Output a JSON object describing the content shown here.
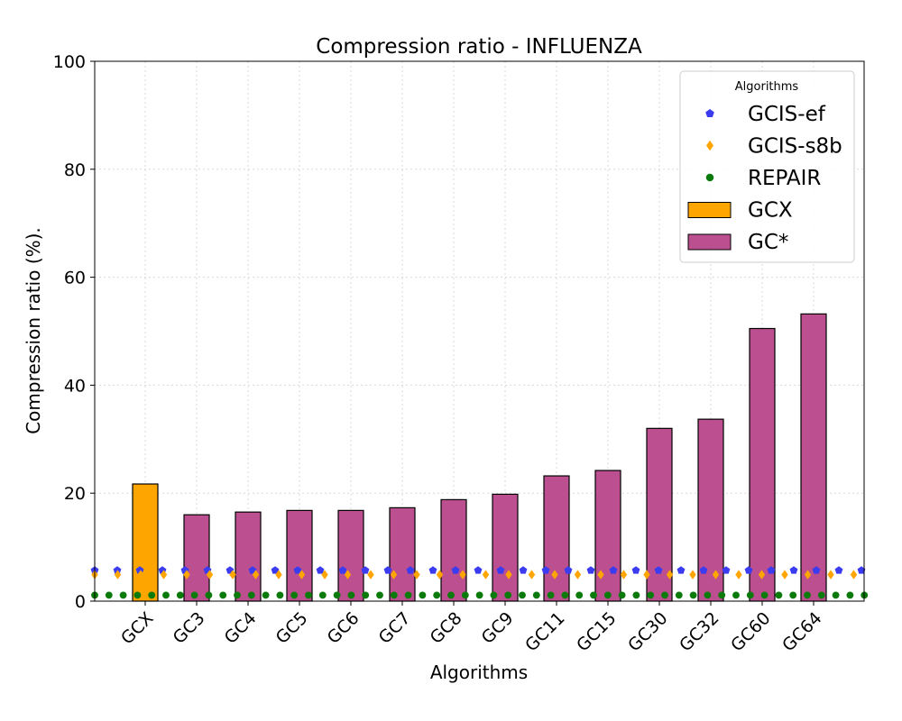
{
  "chart_data": {
    "type": "bar",
    "title": "Compression ratio -  INFLUENZA",
    "xlabel": "Algorithms",
    "ylabel": "Compression ratio (%).",
    "ylim": [
      0,
      100
    ],
    "yticks": [
      0,
      20,
      40,
      60,
      80,
      100
    ],
    "grid": true,
    "legend_position": "top-right",
    "legend_title": "Algorithms",
    "categories": [
      "GCX",
      "GC3",
      "GC4",
      "GC5",
      "GC6",
      "GC7",
      "GC8",
      "GC9",
      "GC11",
      "GC15",
      "GC30",
      "GC32",
      "GC60",
      "GC64"
    ],
    "bars": [
      {
        "name": "GCX",
        "color": "#ffa500",
        "values": [
          21.7,
          null,
          null,
          null,
          null,
          null,
          null,
          null,
          null,
          null,
          null,
          null,
          null,
          null
        ]
      },
      {
        "name": "GC*",
        "color": "#bc4f8f",
        "values": [
          null,
          16.0,
          16.5,
          16.8,
          16.8,
          17.3,
          18.8,
          19.8,
          23.2,
          24.2,
          32.0,
          33.7,
          50.5,
          53.2
        ]
      }
    ],
    "lines": [
      {
        "name": "GCIS-ef",
        "color": "#3b3bf0",
        "marker": "pentagon",
        "value": 5.7
      },
      {
        "name": "GCIS-s8b",
        "color": "#ffa500",
        "marker": "diamond",
        "value": 4.9
      },
      {
        "name": "REPAIR",
        "color": "#0a7a0a",
        "marker": "circle",
        "value": 1.1
      }
    ],
    "legend_order": [
      "GCIS-ef",
      "GCIS-s8b",
      "REPAIR",
      "GCX",
      "GC*"
    ]
  }
}
